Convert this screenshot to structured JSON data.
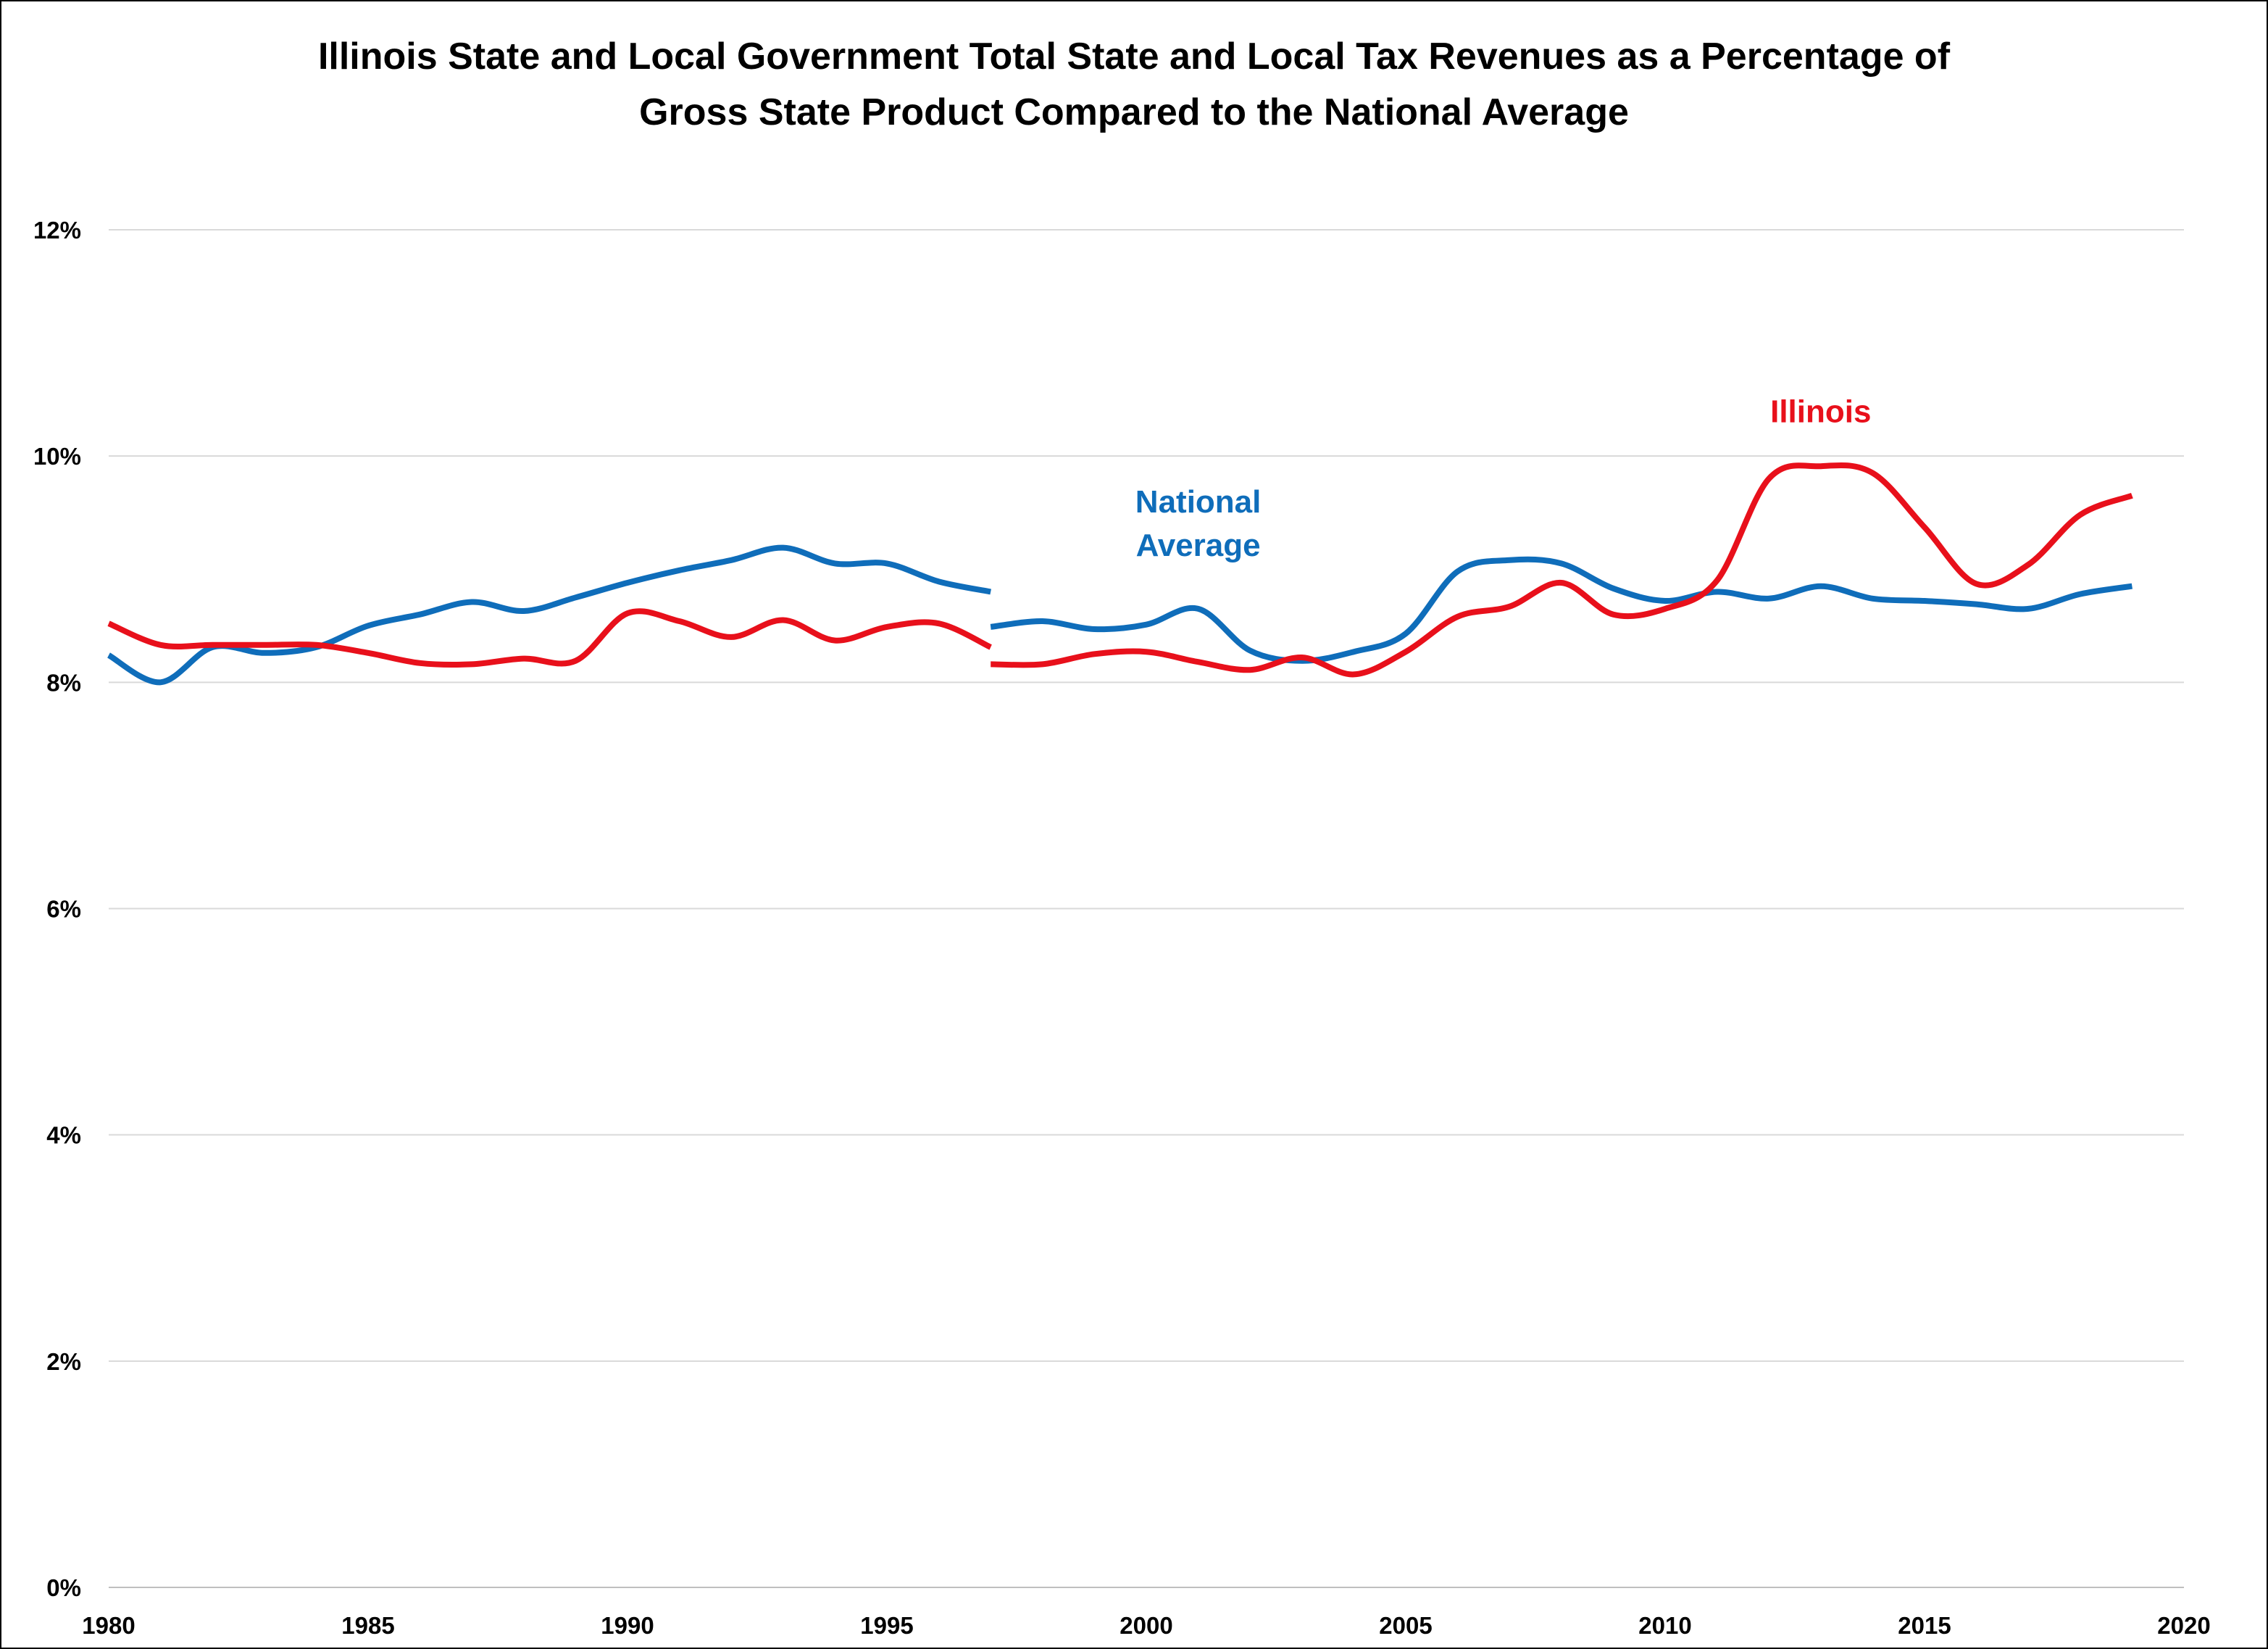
{
  "chart_data": {
    "type": "line",
    "title_lines": [
      "Illinois State and Local Government Total State and Local Tax Revenues as a Percentage of",
      "Gross State Product Compared to the National Average"
    ],
    "xlim": [
      1980,
      2020
    ],
    "ylim": [
      0,
      12
    ],
    "x_ticks": [
      1980,
      1985,
      1990,
      1995,
      2000,
      2005,
      2010,
      2015,
      2020
    ],
    "y_ticks": [
      {
        "value": 0,
        "label": "0%"
      },
      {
        "value": 2,
        "label": "2%"
      },
      {
        "value": 4,
        "label": "4%"
      },
      {
        "value": 6,
        "label": "6%"
      },
      {
        "value": 8,
        "label": "8%"
      },
      {
        "value": 10,
        "label": "10%"
      },
      {
        "value": 12,
        "label": "12%"
      }
    ],
    "grid": "horizontal",
    "legend": "inline labels",
    "series": [
      {
        "name": "Illinois",
        "label_lines": [
          "Illinois"
        ],
        "label_at": {
          "x": 2013,
          "y": 10.3
        },
        "color": "#e8101b",
        "segments": [
          {
            "x": [
              1980,
              1981,
              1982,
              1983,
              1984,
              1985,
              1986,
              1987,
              1988,
              1989,
              1990,
              1991,
              1992,
              1993,
              1994,
              1995,
              1996,
              1997
            ],
            "y": [
              8.52,
              8.33,
              8.33,
              8.33,
              8.33,
              8.26,
              8.17,
              8.16,
              8.21,
              8.19,
              8.61,
              8.54,
              8.4,
              8.55,
              8.37,
              8.49,
              8.52,
              8.31
            ]
          },
          {
            "x": [
              1997,
              1998,
              1999,
              2000,
              2001,
              2002,
              2003,
              2004,
              2005,
              2006,
              2007,
              2008,
              2009,
              2010,
              2011,
              2012,
              2013,
              2014,
              2015,
              2016,
              2017,
              2018,
              2019
            ],
            "y": [
              8.16,
              8.16,
              8.25,
              8.27,
              8.18,
              8.11,
              8.22,
              8.07,
              8.27,
              8.58,
              8.67,
              8.88,
              8.6,
              8.65,
              8.9,
              9.8,
              9.91,
              9.85,
              9.37,
              8.87,
              9.04,
              9.48,
              9.65
            ]
          }
        ]
      },
      {
        "name": "National Average",
        "label_lines": [
          "National",
          "Average"
        ],
        "label_at": {
          "x": 2001,
          "y": 9.5
        },
        "color": "#0f6dba",
        "segments": [
          {
            "x": [
              1980,
              1981,
              1982,
              1983,
              1984,
              1985,
              1986,
              1987,
              1988,
              1989,
              1990,
              1991,
              1992,
              1993,
              1994,
              1995,
              1996,
              1997
            ],
            "y": [
              8.24,
              8.0,
              8.31,
              8.26,
              8.31,
              8.5,
              8.6,
              8.71,
              8.63,
              8.75,
              8.88,
              8.99,
              9.08,
              9.19,
              9.05,
              9.05,
              8.89,
              8.8
            ]
          },
          {
            "x": [
              1997,
              1998,
              1999,
              2000,
              2001,
              2002,
              2003,
              2004,
              2005,
              2006,
              2007,
              2008,
              2009,
              2010,
              2011,
              2012,
              2013,
              2014,
              2015,
              2016,
              2017,
              2018,
              2019
            ],
            "y": [
              8.49,
              8.54,
              8.47,
              8.51,
              8.65,
              8.28,
              8.19,
              8.27,
              8.43,
              8.98,
              9.08,
              9.05,
              8.83,
              8.72,
              8.8,
              8.74,
              8.85,
              8.74,
              8.72,
              8.69,
              8.65,
              8.78,
              8.85
            ]
          }
        ]
      }
    ]
  }
}
